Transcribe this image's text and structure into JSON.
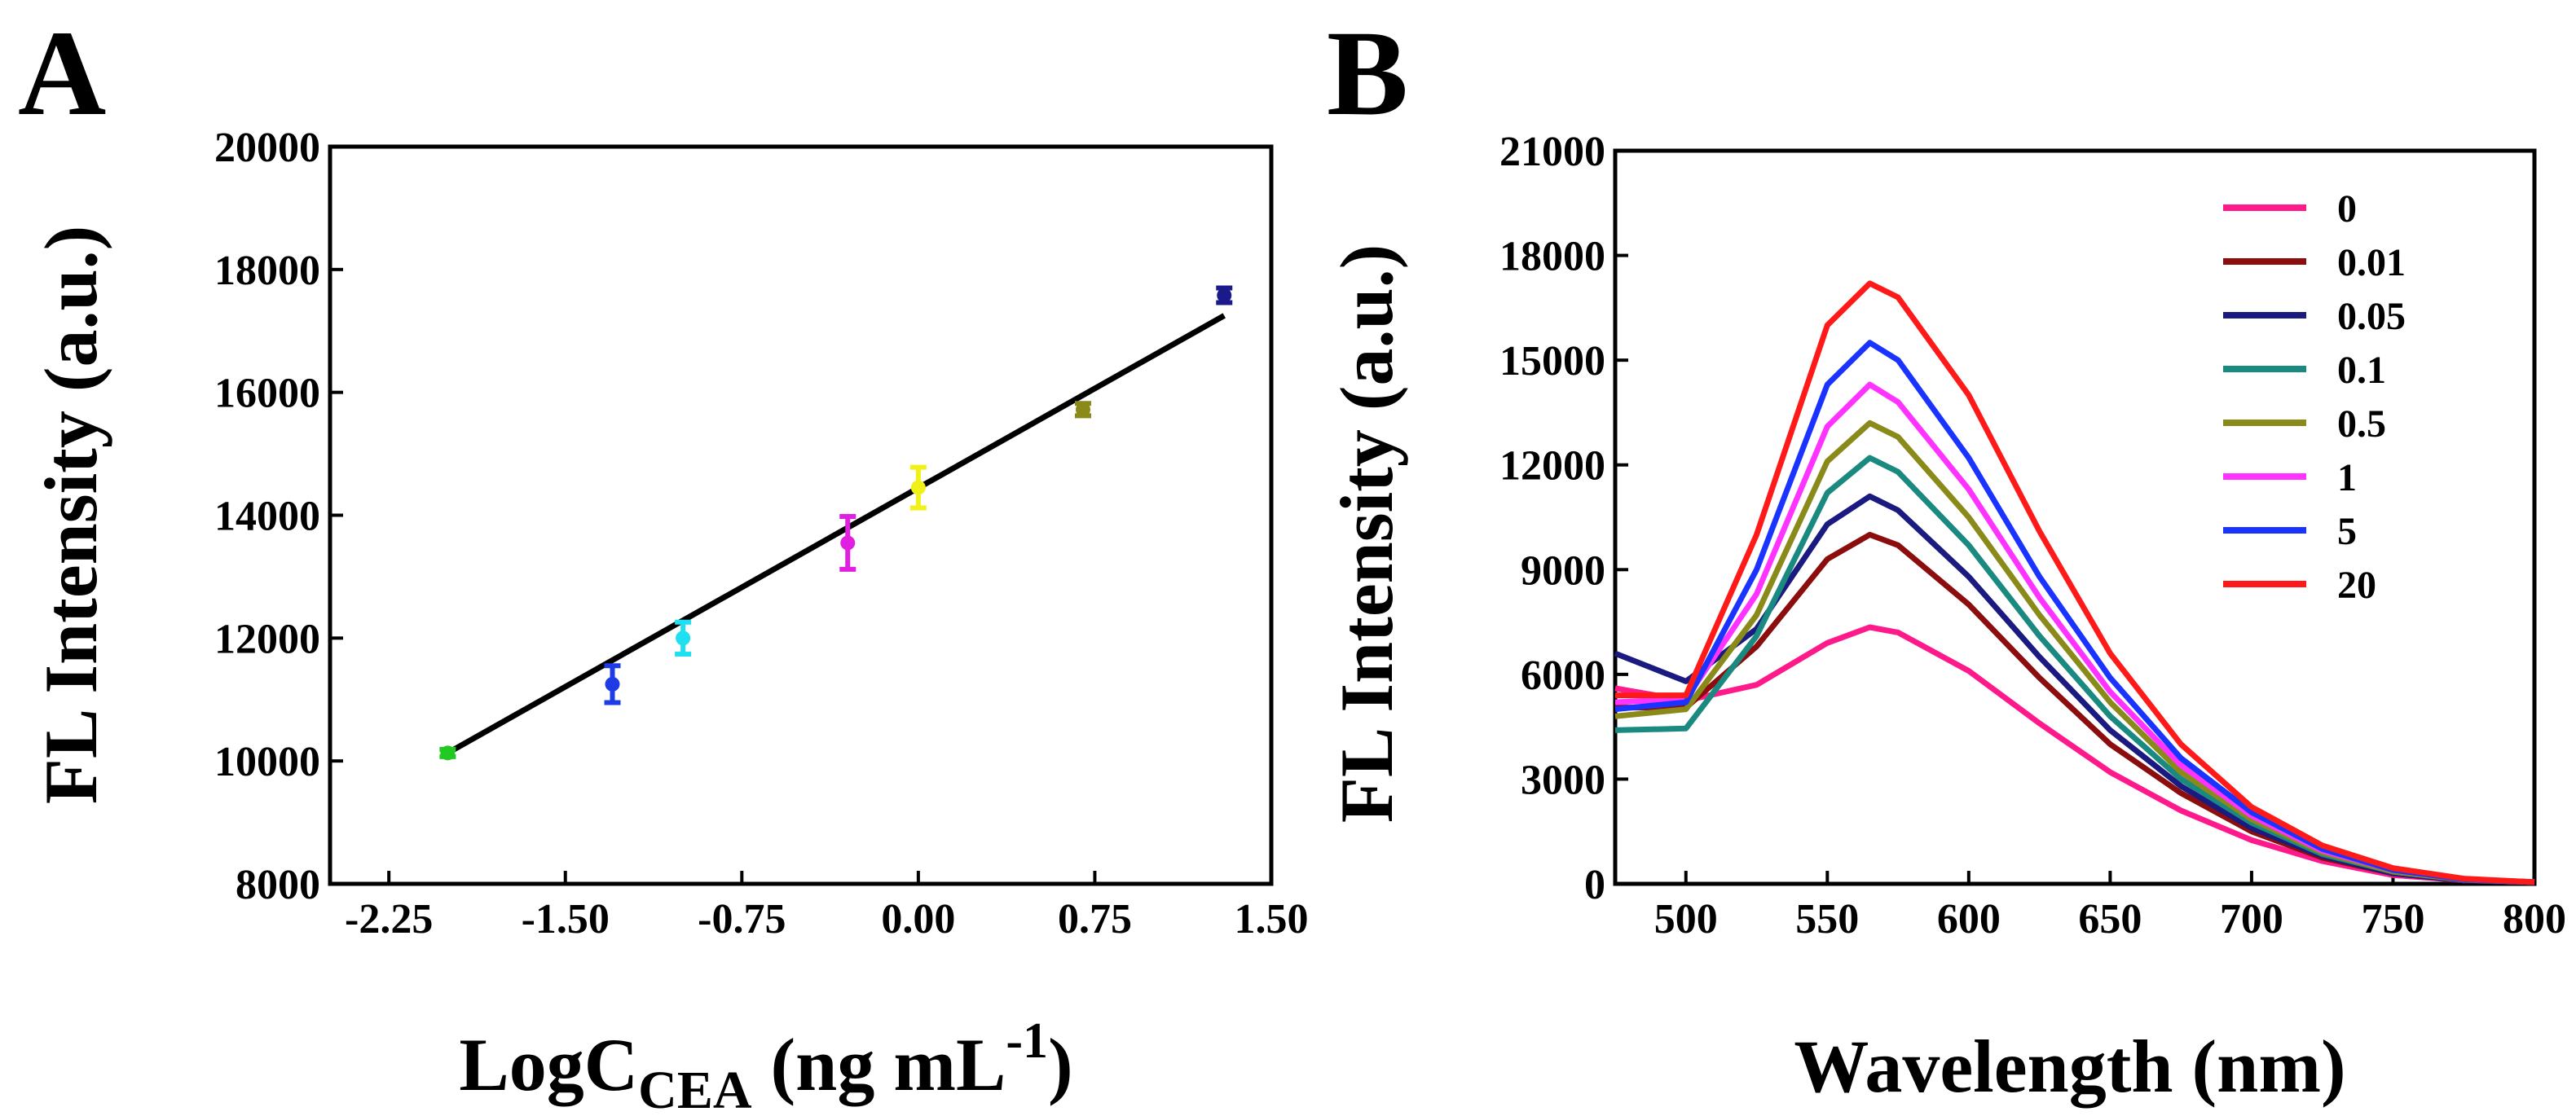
{
  "chart_data": [
    {
      "panel": "A",
      "type": "scatter",
      "title": "",
      "xlabel_main": "LogC",
      "xlabel_sub": "CEA",
      "xlabel_unit_pre": " (ng mL",
      "xlabel_unit_sup": "-1",
      "xlabel_unit_post": ")",
      "ylabel": "FL Intensity (a.u.)",
      "xlim": [
        -2.5,
        1.5
      ],
      "ylim": [
        8000,
        20000
      ],
      "xticks": [
        "-2.25",
        "-1.50",
        "-0.75",
        "0.00",
        "0.75",
        "1.50"
      ],
      "xtick_values": [
        -2.25,
        -1.5,
        -0.75,
        0.0,
        0.75,
        1.5
      ],
      "yticks": [
        "8000",
        "10000",
        "12000",
        "14000",
        "16000",
        "18000",
        "20000"
      ],
      "ytick_values": [
        8000,
        10000,
        12000,
        14000,
        16000,
        18000,
        20000
      ],
      "points": [
        {
          "x": -2.0,
          "y": 10130,
          "err": 60,
          "color": "#22c922"
        },
        {
          "x": -1.3,
          "y": 11250,
          "err": 300,
          "color": "#1f3be6"
        },
        {
          "x": -1.0,
          "y": 12000,
          "err": 260,
          "color": "#1fe0f0"
        },
        {
          "x": -0.3,
          "y": 13550,
          "err": 430,
          "color": "#e01fe0"
        },
        {
          "x": 0.0,
          "y": 14450,
          "err": 330,
          "color": "#f0f01a"
        },
        {
          "x": 0.7,
          "y": 15720,
          "err": 100,
          "color": "#8a8a1a"
        },
        {
          "x": 1.3,
          "y": 17580,
          "err": 120,
          "color": "#1a1a8a"
        }
      ],
      "fit_line": {
        "x1": -2.0,
        "y1": 10130,
        "x2": 1.3,
        "y2": 17250,
        "color": "#000000"
      }
    },
    {
      "panel": "B",
      "type": "line",
      "title": "",
      "xlabel": "Wavelength (nm)",
      "ylabel": "FL Intensity (a.u.)",
      "xlim": [
        475,
        800
      ],
      "ylim": [
        0,
        21000
      ],
      "xticks": [
        "500",
        "550",
        "600",
        "650",
        "700",
        "750",
        "800"
      ],
      "xtick_values": [
        500,
        550,
        600,
        650,
        700,
        750,
        800
      ],
      "yticks": [
        "0",
        "3000",
        "6000",
        "9000",
        "12000",
        "15000",
        "18000",
        "21000"
      ],
      "ytick_values": [
        0,
        3000,
        6000,
        9000,
        12000,
        15000,
        18000,
        21000
      ],
      "x": [
        475,
        500,
        525,
        550,
        565,
        575,
        600,
        625,
        650,
        675,
        700,
        725,
        750,
        775,
        800
      ],
      "series": [
        {
          "name": "0",
          "color": "#ff1a8c",
          "values": [
            5600,
            5250,
            5700,
            6900,
            7350,
            7200,
            6100,
            4600,
            3200,
            2100,
            1250,
            650,
            250,
            100,
            50
          ]
        },
        {
          "name": "0.01",
          "color": "#8b0d0d",
          "values": [
            5050,
            5050,
            6800,
            9300,
            10000,
            9700,
            8000,
            5900,
            4000,
            2600,
            1500,
            750,
            300,
            100,
            50
          ]
        },
        {
          "name": "0.05",
          "color": "#1a1a80",
          "values": [
            6600,
            5800,
            7300,
            10300,
            11100,
            10700,
            8800,
            6500,
            4400,
            2800,
            1600,
            800,
            300,
            100,
            50
          ]
        },
        {
          "name": "0.1",
          "color": "#1a8a80",
          "values": [
            4400,
            4450,
            7100,
            11200,
            12200,
            11800,
            9700,
            7100,
            4800,
            3000,
            1750,
            850,
            350,
            120,
            50
          ]
        },
        {
          "name": "0.5",
          "color": "#8a8a1a",
          "values": [
            4800,
            5000,
            7700,
            12100,
            13200,
            12800,
            10500,
            7700,
            5200,
            3200,
            1850,
            900,
            350,
            120,
            50
          ]
        },
        {
          "name": "1",
          "color": "#ff33ff",
          "values": [
            5200,
            5300,
            8300,
            13100,
            14300,
            13800,
            11300,
            8200,
            5500,
            3400,
            1950,
            950,
            400,
            130,
            50
          ]
        },
        {
          "name": "5",
          "color": "#1a33ff",
          "values": [
            5000,
            5200,
            9000,
            14300,
            15500,
            15000,
            12200,
            8800,
            5900,
            3600,
            2050,
            1000,
            400,
            130,
            50
          ]
        },
        {
          "name": "20",
          "color": "#ff1a1a",
          "values": [
            5400,
            5400,
            10000,
            16000,
            17200,
            16800,
            14000,
            10100,
            6600,
            4000,
            2200,
            1100,
            450,
            150,
            50
          ]
        }
      ]
    }
  ]
}
